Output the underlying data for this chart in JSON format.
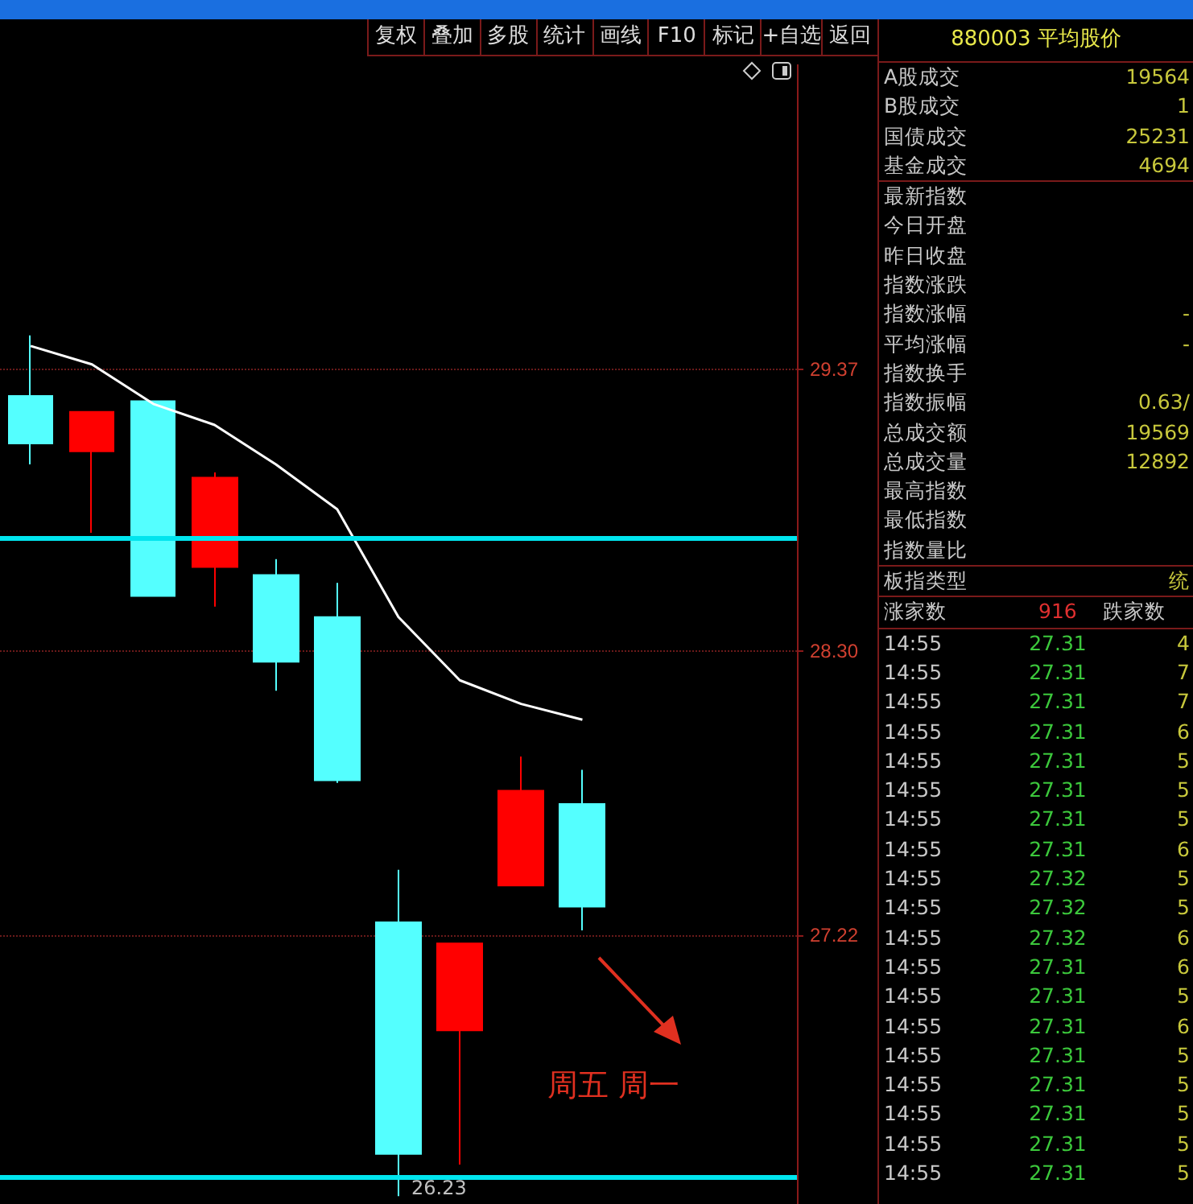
{
  "chart_data": [
    {
      "type": "candlestick",
      "categories": [
        null,
        null,
        null,
        null,
        null,
        null,
        null,
        null,
        null,
        null,
        null,
        null,
        null
      ],
      "ohlc": [
        [
          29.27,
          29.5,
          29.01,
          29.09
        ],
        [
          29.06,
          29.21,
          28.75,
          29.21
        ],
        [
          29.25,
          29.25,
          28.51,
          28.51
        ],
        [
          28.62,
          28.98,
          28.47,
          28.96
        ],
        [
          28.59,
          28.65,
          28.15,
          28.26
        ],
        [
          28.43,
          28.56,
          27.8,
          27.81
        ],
        [
          27.27,
          27.47,
          26.23,
          26.39
        ],
        [
          26.86,
          27.19,
          26.35,
          27.19
        ],
        [
          27.41,
          27.9,
          27.41,
          27.77
        ],
        [
          27.72,
          27.85,
          27.24,
          27.33
        ],
        null,
        null,
        null
      ],
      "colors": [
        "#54ffff",
        "#ff0000",
        "#54ffff",
        "#ff0000",
        "#54ffff",
        "#54ffff",
        "#54ffff",
        "#ff0000",
        "#ff0000",
        "#54ffff",
        null,
        null,
        null
      ],
      "series": [
        {
          "type": "line",
          "color": "#ffffff",
          "values": [
            29.46,
            29.39,
            29.24,
            29.16,
            29.01,
            28.84,
            28.43,
            28.19,
            28.1,
            28.04,
            null,
            null,
            null
          ]
        }
      ],
      "marker": "none",
      "ylim": [
        26.2,
        30.53
      ],
      "yticks": [
        29.37,
        {
          "value": 28.3,
          "label": "28.30"
        },
        27.22
      ],
      "grid": "y",
      "tick_labels": "y",
      "ref_lines": [
        {
          "axis": "y",
          "value": 28.73,
          "color": "#00e5ee"
        },
        {
          "axis": "y",
          "value": 26.3,
          "color": "#00e5ee"
        }
      ],
      "annotations": [
        "26.23",
        "周五 周一"
      ]
    },
    {
      "type": "other",
      "annotations": [
        "复权",
        "叠加",
        "多股",
        "统计",
        "画线",
        "F10",
        "标记",
        "+自选",
        "返回"
      ]
    },
    {
      "type": "other",
      "title": "880003 平均股价",
      "annotations": [
        "A股成交 19564",
        "B股成交 1",
        "国债成交 25231",
        "基金成交 4694",
        "最新指数",
        "今日开盘",
        "昨日收盘",
        "指数涨跌",
        "指数涨幅 -",
        "平均涨幅 -",
        "指数换手",
        "指数振幅 0.63/",
        "总成交额 19569",
        "总成交量 12892",
        "最高指数",
        "最低指数",
        "指数量比",
        "板指类型 统",
        "涨家数 916 跌家数",
        "14:55 27.31 4",
        "14:55 27.31 7",
        "14:55 27.31 7",
        "14:55 27.31 6",
        "14:55 27.31 5",
        "14:55 27.31 5",
        "14:55 27.31 5",
        "14:55 27.31 6",
        "14:55 27.32 5",
        "14:55 27.32 5",
        "14:55 27.32 6",
        "14:55 27.31 6",
        "14:55 27.31 5",
        "14:55 27.31 6",
        "14:55 27.31 5",
        "14:55 27.31 5",
        "14:55 27.31 5",
        "14:55 27.31 5",
        "14:55 27.31 5"
      ]
    }
  ]
}
